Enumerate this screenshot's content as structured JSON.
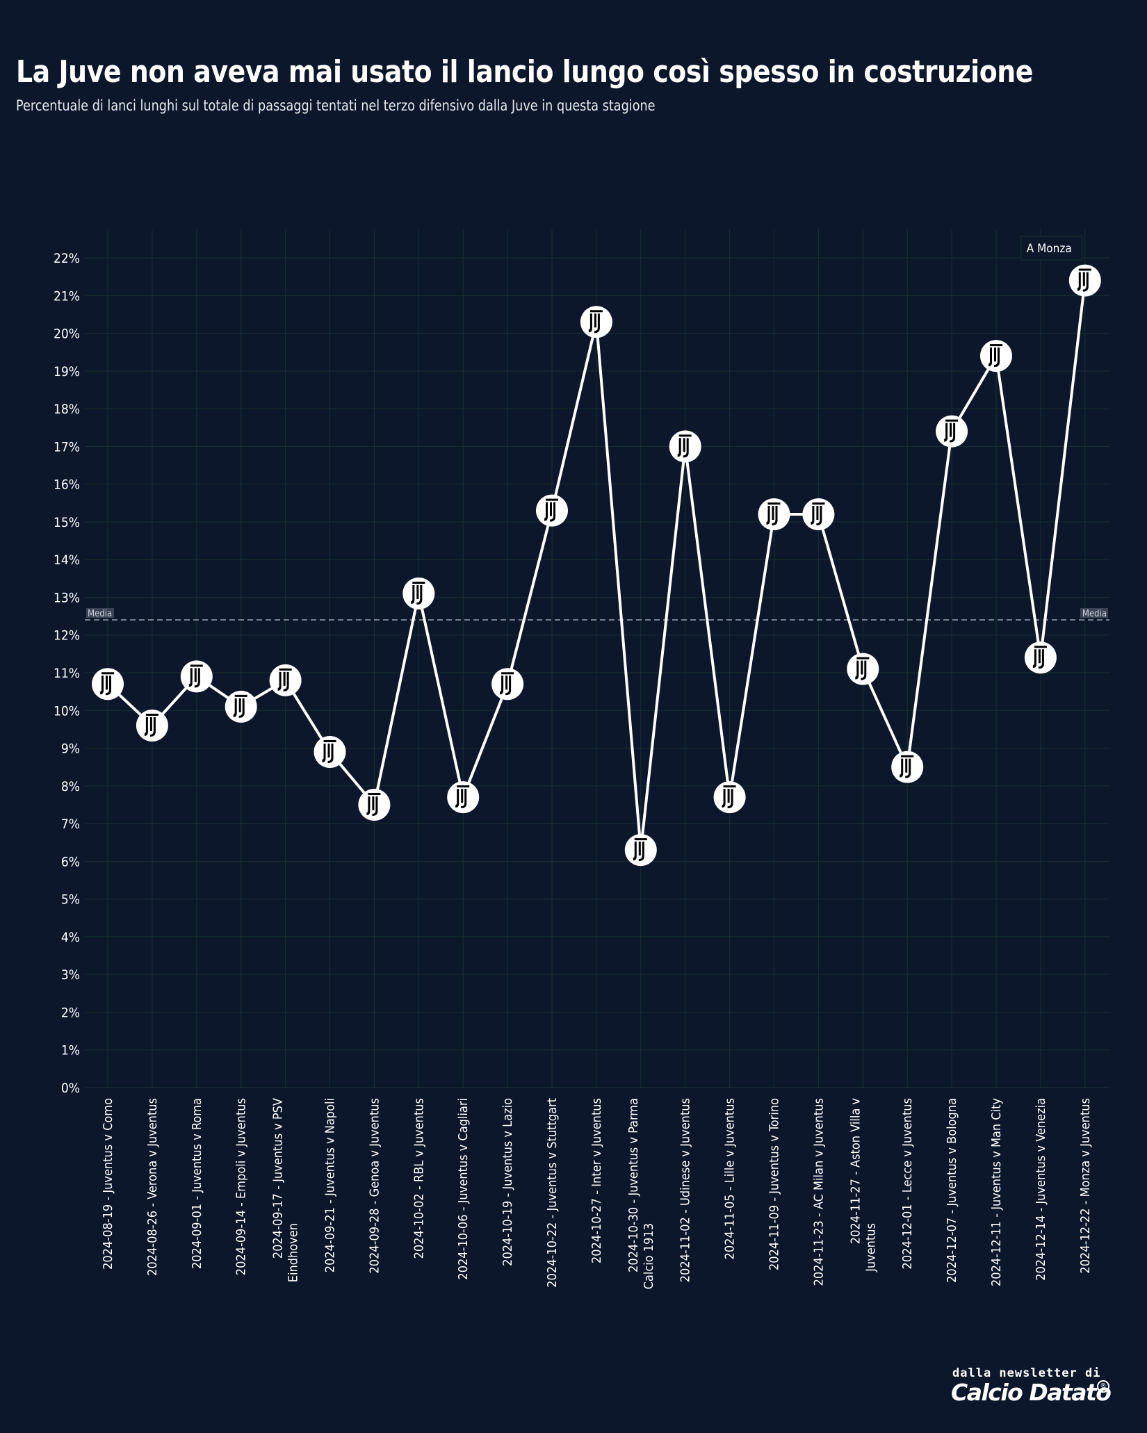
{
  "title": "La Juve non aveva mai usato il lancio lungo così spesso in costruzione",
  "subtitle": "Percentuale di lanci lunghi sul totale di passaggi tentati nel terzo difensivo dalla Juve in questa stagione",
  "footer": {
    "line1": "dalla newsletter di",
    "brand": "Calcio Datato",
    "mark": "®"
  },
  "colors": {
    "background": "#0c172b",
    "line": "#ffffff",
    "grid": "#17302f",
    "mean_line": "#9aa3b2"
  },
  "icon": "juventus-logo-icon",
  "chart_data": {
    "type": "line",
    "title": "La Juve non aveva mai usato il lancio lungo così spesso in costruzione",
    "subtitle": "Percentuale di lanci lunghi sul totale di passaggi tentati nel terzo difensivo dalla Juve in questa stagione",
    "xlabel": "",
    "ylabel": "",
    "ylim": [
      0,
      22
    ],
    "yticks": [
      0,
      1,
      2,
      3,
      4,
      5,
      6,
      7,
      8,
      9,
      10,
      11,
      12,
      13,
      14,
      15,
      16,
      17,
      18,
      19,
      20,
      21,
      22
    ],
    "ytick_suffix": "%",
    "grid": true,
    "categories": [
      "2024-08-19 - Juventus v Como",
      "2024-08-26 - Verona v Juventus",
      "2024-09-01 - Juventus v Roma",
      "2024-09-14 - Empoli v Juventus",
      "2024-09-17 - Juventus v PSV Eindhoven",
      "2024-09-21 - Juventus v Napoli",
      "2024-09-28 - Genoa v Juventus",
      "2024-10-02 - RBL v Juventus",
      "2024-10-06 - Juventus v Cagliari",
      "2024-10-19 - Juventus v Lazio",
      "2024-10-22 - Juventus v Stuttgart",
      "2024-10-27 - Inter v Juventus",
      "2024-10-30 - Juventus v Parma Calcio 1913",
      "2024-11-02 - Udinese v Juventus",
      "2024-11-05 - Lille v Juventus",
      "2024-11-09 - Juventus v Torino",
      "2024-11-23 - AC Milan v Juventus",
      "2024-11-27 - Aston Villa v Juventus",
      "2024-12-01 - Lecce v Juventus",
      "2024-12-07 - Juventus v Bologna",
      "2024-12-11 - Juventus v Man City",
      "2024-12-14 - Juventus v Venezia",
      "2024-12-22 - Monza v Juventus"
    ],
    "tick_label_lines": [
      [
        "2024-08-19 - Juventus v Como"
      ],
      [
        "2024-08-26 - Verona v Juventus"
      ],
      [
        "2024-09-01 - Juventus v Roma"
      ],
      [
        "2024-09-14 - Empoli v Juventus"
      ],
      [
        "2024-09-17 - Juventus v PSV",
        "Eindhoven"
      ],
      [
        "2024-09-21 - Juventus v Napoli"
      ],
      [
        "2024-09-28 - Genoa v Juventus"
      ],
      [
        "2024-10-02 - RBL v Juventus"
      ],
      [
        "2024-10-06 - Juventus v Cagliari"
      ],
      [
        "2024-10-19 - Juventus v Lazio"
      ],
      [
        "2024-10-22 - Juventus v Stuttgart"
      ],
      [
        "2024-10-27 - Inter v Juventus"
      ],
      [
        "2024-10-30 - Juventus v Parma",
        "Calcio 1913"
      ],
      [
        "2024-11-02 - Udinese v Juventus"
      ],
      [
        "2024-11-05 - Lille v Juventus"
      ],
      [
        "2024-11-09 - Juventus v Torino"
      ],
      [
        "2024-11-23 - AC Milan v Juventus"
      ],
      [
        "2024-11-27 - Aston Villa v",
        "Juventus"
      ],
      [
        "2024-12-01 - Lecce v Juventus"
      ],
      [
        "2024-12-07 - Juventus v Bologna"
      ],
      [
        "2024-12-11 - Juventus v Man City"
      ],
      [
        "2024-12-14 - Juventus v Venezia"
      ],
      [
        "2024-12-22 - Monza v Juventus"
      ]
    ],
    "series": [
      {
        "values": [
          10.7,
          9.6,
          10.9,
          10.1,
          10.8,
          8.9,
          7.5,
          13.1,
          7.7,
          10.7,
          15.3,
          20.3,
          6.3,
          17.0,
          7.7,
          15.2,
          15.2,
          11.1,
          8.5,
          17.4,
          19.4,
          11.4,
          21.4
        ],
        "color": "#ffffff",
        "marker": "juventus-logo-icon"
      }
    ],
    "mean_line": {
      "value": 12.4,
      "label": "Media"
    },
    "annotations": [
      {
        "text": "A Monza",
        "category_index": 22
      }
    ]
  }
}
